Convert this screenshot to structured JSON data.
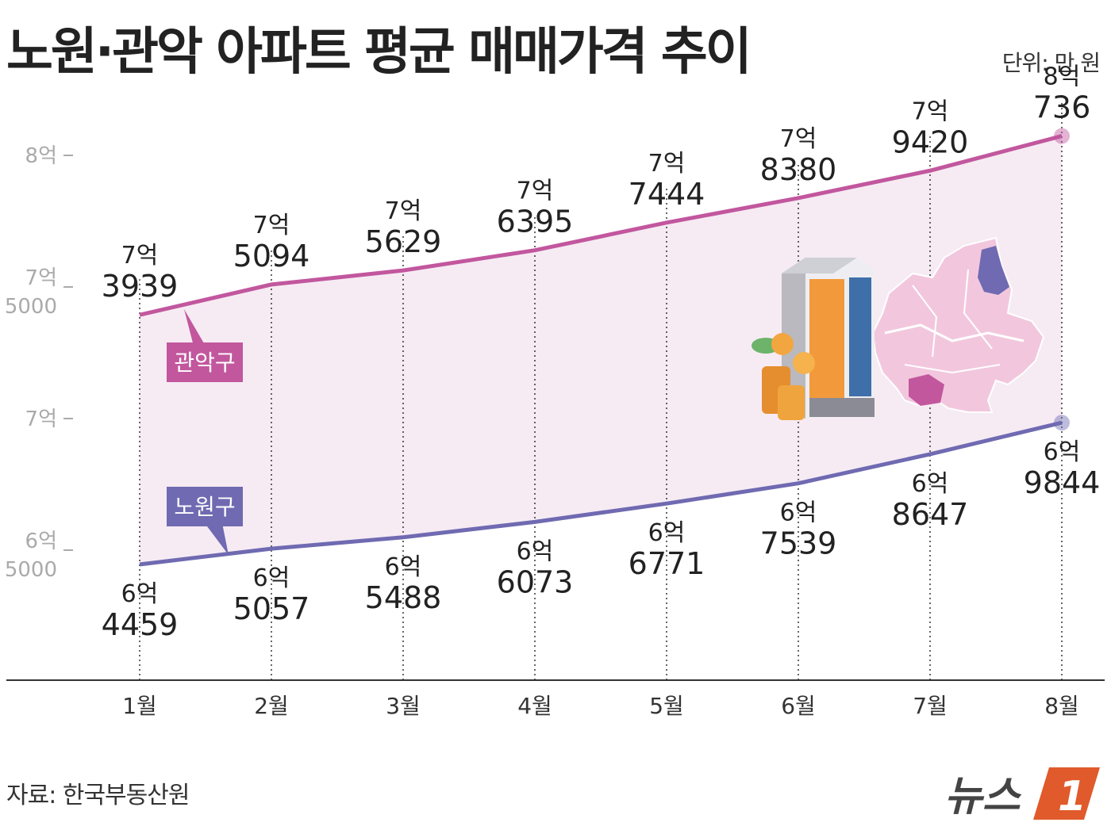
{
  "header": {
    "title": "노원·관악 아파트 평균 매매가격 추이",
    "unit": "단위: 만 원"
  },
  "footer": {
    "source": "자료: 한국부동산원",
    "brand": "뉴스1"
  },
  "colors": {
    "gwanak": "#c2579e",
    "nowon": "#6f6ab1",
    "band": "#f6ebf3",
    "axis": "#333333",
    "tick": "#aaaaaa"
  },
  "chart_data": {
    "type": "line",
    "categories": [
      "1월",
      "2월",
      "3월",
      "4월",
      "5월",
      "6월",
      "7월",
      "8월"
    ],
    "ylim": [
      60000,
      80000
    ],
    "yticks": [
      {
        "value": 80000,
        "line1": "8억",
        "line2": ""
      },
      {
        "value": 75000,
        "line1": "7억",
        "line2": "5000"
      },
      {
        "value": 70000,
        "line1": "7억",
        "line2": ""
      },
      {
        "value": 65000,
        "line1": "6억",
        "line2": "5000"
      }
    ],
    "series": [
      {
        "name": "관악구",
        "values": [
          73939,
          75094,
          75629,
          76395,
          77444,
          78380,
          79420,
          80736
        ],
        "labels": [
          [
            "7억",
            "3939"
          ],
          [
            "7억",
            "5094"
          ],
          [
            "7억",
            "5629"
          ],
          [
            "7억",
            "6395"
          ],
          [
            "7억",
            "7444"
          ],
          [
            "7억",
            "8380"
          ],
          [
            "7억",
            "9420"
          ],
          [
            "8억",
            "736"
          ]
        ]
      },
      {
        "name": "노원구",
        "values": [
          64459,
          65057,
          65488,
          66073,
          66771,
          67539,
          68647,
          69844
        ],
        "labels": [
          [
            "6억",
            "4459"
          ],
          [
            "6억",
            "5057"
          ],
          [
            "6억",
            "5488"
          ],
          [
            "6억",
            "6073"
          ],
          [
            "6억",
            "6771"
          ],
          [
            "6억",
            "7539"
          ],
          [
            "6억",
            "8647"
          ],
          [
            "6억",
            "9844"
          ]
        ]
      }
    ]
  }
}
